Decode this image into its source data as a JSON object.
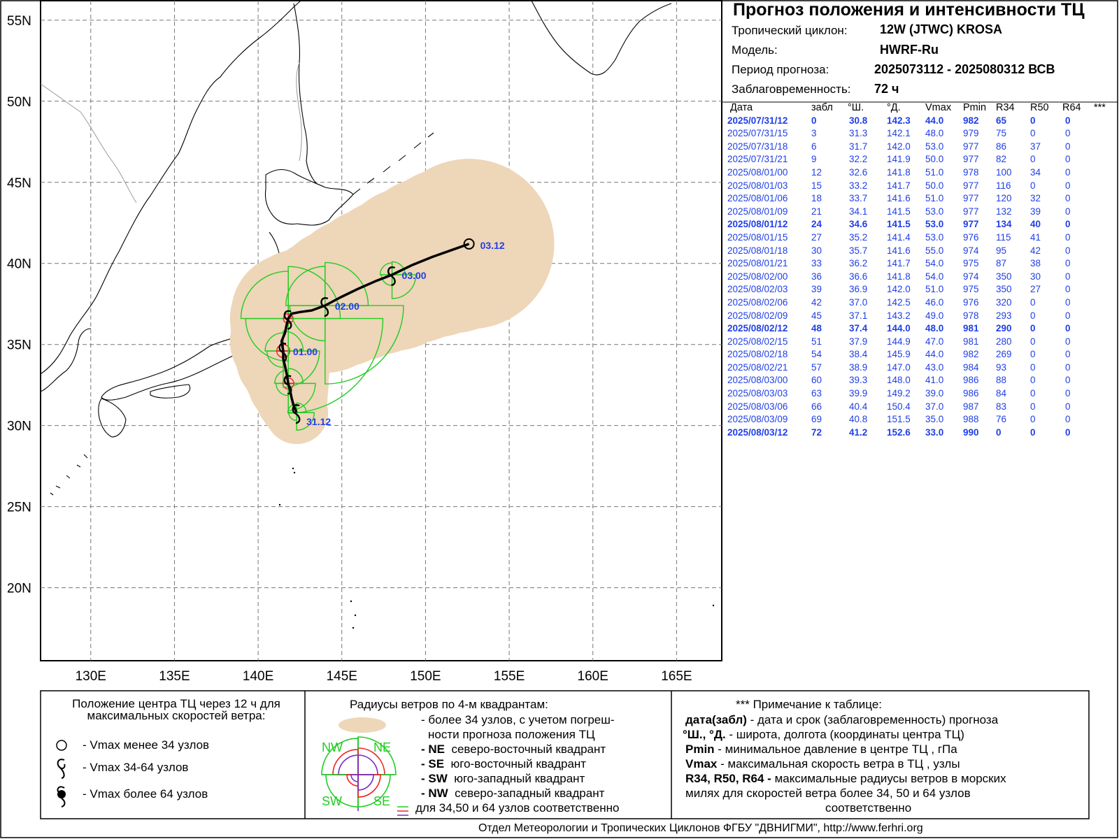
{
  "header": {
    "title": "Прогноз положения и интенсивности ТЦ",
    "cyclone_label": "Тропический циклон:",
    "cyclone_value": "12W (JTWC)  KROSA",
    "model_label": "Модель:",
    "model_value": "HWRF-Ru",
    "period_label": "Период прогноза:",
    "period_value": "2025073112 - 2025080312 ВСВ",
    "lead_label": "Заблаговременность:",
    "lead_value": "72 ч"
  },
  "table": {
    "columns": [
      "Дата",
      "забл",
      "°Ш.",
      "°Д.",
      "Vmax",
      "Pmin",
      "R34",
      "R50",
      "R64",
      "***"
    ],
    "rows": [
      {
        "date": "2025/07/31/12",
        "lead": "0",
        "lat": "30.8",
        "lon": "142.3",
        "vmax": "44.0",
        "pmin": "982",
        "r34": "65",
        "r50": "0",
        "r64": "0",
        "bold": true
      },
      {
        "date": "2025/07/31/15",
        "lead": "3",
        "lat": "31.3",
        "lon": "142.1",
        "vmax": "48.0",
        "pmin": "979",
        "r34": "75",
        "r50": "0",
        "r64": "0",
        "bold": false
      },
      {
        "date": "2025/07/31/18",
        "lead": "6",
        "lat": "31.7",
        "lon": "142.0",
        "vmax": "53.0",
        "pmin": "977",
        "r34": "86",
        "r50": "37",
        "r64": "0",
        "bold": false
      },
      {
        "date": "2025/07/31/21",
        "lead": "9",
        "lat": "32.2",
        "lon": "141.9",
        "vmax": "50.0",
        "pmin": "977",
        "r34": "82",
        "r50": "0",
        "r64": "0",
        "bold": false
      },
      {
        "date": "2025/08/01/00",
        "lead": "12",
        "lat": "32.6",
        "lon": "141.8",
        "vmax": "51.0",
        "pmin": "978",
        "r34": "100",
        "r50": "34",
        "r64": "0",
        "bold": false
      },
      {
        "date": "2025/08/01/03",
        "lead": "15",
        "lat": "33.2",
        "lon": "141.7",
        "vmax": "50.0",
        "pmin": "977",
        "r34": "116",
        "r50": "0",
        "r64": "0",
        "bold": false
      },
      {
        "date": "2025/08/01/06",
        "lead": "18",
        "lat": "33.7",
        "lon": "141.6",
        "vmax": "51.0",
        "pmin": "977",
        "r34": "120",
        "r50": "32",
        "r64": "0",
        "bold": false
      },
      {
        "date": "2025/08/01/09",
        "lead": "21",
        "lat": "34.1",
        "lon": "141.5",
        "vmax": "53.0",
        "pmin": "977",
        "r34": "132",
        "r50": "39",
        "r64": "0",
        "bold": false
      },
      {
        "date": "2025/08/01/12",
        "lead": "24",
        "lat": "34.6",
        "lon": "141.5",
        "vmax": "53.0",
        "pmin": "977",
        "r34": "134",
        "r50": "40",
        "r64": "0",
        "bold": true
      },
      {
        "date": "2025/08/01/15",
        "lead": "27",
        "lat": "35.2",
        "lon": "141.4",
        "vmax": "53.0",
        "pmin": "976",
        "r34": "115",
        "r50": "41",
        "r64": "0",
        "bold": false
      },
      {
        "date": "2025/08/01/18",
        "lead": "30",
        "lat": "35.7",
        "lon": "141.6",
        "vmax": "55.0",
        "pmin": "974",
        "r34": "95",
        "r50": "42",
        "r64": "0",
        "bold": false
      },
      {
        "date": "2025/08/01/21",
        "lead": "33",
        "lat": "36.2",
        "lon": "141.7",
        "vmax": "54.0",
        "pmin": "975",
        "r34": "87",
        "r50": "38",
        "r64": "0",
        "bold": false
      },
      {
        "date": "2025/08/02/00",
        "lead": "36",
        "lat": "36.6",
        "lon": "141.8",
        "vmax": "54.0",
        "pmin": "974",
        "r34": "350",
        "r50": "30",
        "r64": "0",
        "bold": false
      },
      {
        "date": "2025/08/02/03",
        "lead": "39",
        "lat": "36.9",
        "lon": "142.0",
        "vmax": "51.0",
        "pmin": "975",
        "r34": "350",
        "r50": "27",
        "r64": "0",
        "bold": false
      },
      {
        "date": "2025/08/02/06",
        "lead": "42",
        "lat": "37.0",
        "lon": "142.5",
        "vmax": "46.0",
        "pmin": "976",
        "r34": "320",
        "r50": "0",
        "r64": "0",
        "bold": false
      },
      {
        "date": "2025/08/02/09",
        "lead": "45",
        "lat": "37.1",
        "lon": "143.2",
        "vmax": "49.0",
        "pmin": "978",
        "r34": "293",
        "r50": "0",
        "r64": "0",
        "bold": false
      },
      {
        "date": "2025/08/02/12",
        "lead": "48",
        "lat": "37.4",
        "lon": "144.0",
        "vmax": "48.0",
        "pmin": "981",
        "r34": "290",
        "r50": "0",
        "r64": "0",
        "bold": true
      },
      {
        "date": "2025/08/02/15",
        "lead": "51",
        "lat": "37.9",
        "lon": "144.9",
        "vmax": "47.0",
        "pmin": "981",
        "r34": "280",
        "r50": "0",
        "r64": "0",
        "bold": false
      },
      {
        "date": "2025/08/02/18",
        "lead": "54",
        "lat": "38.4",
        "lon": "145.9",
        "vmax": "44.0",
        "pmin": "982",
        "r34": "269",
        "r50": "0",
        "r64": "0",
        "bold": false
      },
      {
        "date": "2025/08/02/21",
        "lead": "57",
        "lat": "38.9",
        "lon": "147.0",
        "vmax": "43.0",
        "pmin": "984",
        "r34": "93",
        "r50": "0",
        "r64": "0",
        "bold": false
      },
      {
        "date": "2025/08/03/00",
        "lead": "60",
        "lat": "39.3",
        "lon": "148.0",
        "vmax": "41.0",
        "pmin": "986",
        "r34": "88",
        "r50": "0",
        "r64": "0",
        "bold": false
      },
      {
        "date": "2025/08/03/03",
        "lead": "63",
        "lat": "39.9",
        "lon": "149.2",
        "vmax": "39.0",
        "pmin": "986",
        "r34": "84",
        "r50": "0",
        "r64": "0",
        "bold": false
      },
      {
        "date": "2025/08/03/06",
        "lead": "66",
        "lat": "40.4",
        "lon": "150.4",
        "vmax": "37.0",
        "pmin": "987",
        "r34": "83",
        "r50": "0",
        "r64": "0",
        "bold": false
      },
      {
        "date": "2025/08/03/09",
        "lead": "69",
        "lat": "40.8",
        "lon": "151.5",
        "vmax": "35.0",
        "pmin": "988",
        "r34": "76",
        "r50": "0",
        "r64": "0",
        "bold": false
      },
      {
        "date": "2025/08/03/12",
        "lead": "72",
        "lat": "41.2",
        "lon": "152.6",
        "vmax": "33.0",
        "pmin": "990",
        "r34": "0",
        "r50": "0",
        "r64": "0",
        "bold": true
      }
    ]
  },
  "map": {
    "lat_labels": [
      "55N",
      "50N",
      "45N",
      "40N",
      "35N",
      "30N",
      "25N",
      "20N"
    ],
    "lon_labels": [
      "130E",
      "135E",
      "140E",
      "145E",
      "150E",
      "155E",
      "160E",
      "165E"
    ],
    "time_labels": [
      "31.12",
      "01.00",
      "02.00",
      "03.00",
      "03.12"
    ],
    "colors": {
      "track": "#000000",
      "uncertainty": "#eed6b8",
      "r34": "#22cc22",
      "r50": "#ee2222",
      "label": "#1f3fe6",
      "grid": "#777777"
    }
  },
  "legend": {
    "box1": {
      "title": "Положение центра ТЦ через 12 ч для максимальных скоростей ветра:",
      "items": [
        "- Vmax  менее 34 узлов",
        "- Vmax  34-64 узлов",
        "- Vmax  более 64 узлов"
      ]
    },
    "box2": {
      "title": "Радиусы ветров по 4-м квадрантам:",
      "line1": "- более 34 узлов, с учетом погреш-",
      "line2": "ности прогноза положения ТЦ",
      "q_ne_key": "- NE",
      "q_ne_text": "северо-восточный квадрант",
      "q_se_key": "- SE",
      "q_se_text": "юго-восточный квадрант",
      "q_sw_key": "- SW",
      "q_sw_text": "юго-западный квадрант",
      "q_nw_key": "- NW",
      "q_nw_text": "северо-западный квадрант",
      "last": "для 34,50 и 64 узлов соответственно",
      "labels": {
        "nw": "NW",
        "ne": "NE",
        "sw": "SW",
        "se": "SE"
      }
    },
    "box3": {
      "title": "*** Примечание к таблице:",
      "l1_key": "дата(забл)",
      "l1_text": " - дата и срок (заблаговременность) прогноза",
      "l2_key": "°Ш., °Д.",
      "l2_text": " - широта, долгота   (координаты центра ТЦ)",
      "l3_key": "Pmin",
      "l3_text": "  - минимальное давление в центре ТЦ , гПа",
      "l4_key": "Vmax",
      "l4_text": "   -  максимальная скорость ветра в ТЦ , узлы",
      "l5_key": "R34, R50, R64 -",
      "l5_text": " максимальные радиусы ветров в морских",
      "l6": "милях для скоростей ветра более 34, 50 и 64 узлов",
      "l7": "соответственно"
    }
  },
  "footer": "Отдел Метеорологии и Тропических Циклонов ФГБУ \"ДВНИГМИ\",  http://www.ferhri.org"
}
